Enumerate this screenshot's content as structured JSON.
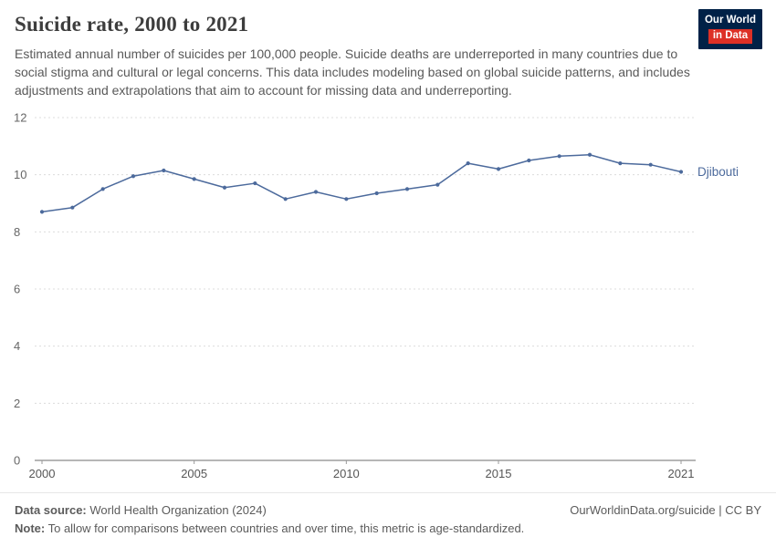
{
  "header": {
    "title": "Suicide rate, 2000 to 2021",
    "subtitle": "Estimated annual number of suicides per 100,000 people. Suicide deaths are underreported in many countries due to social stigma and cultural or legal concerns. This data includes modeling based on global suicide patterns, and includes adjustments and extrapolations that aim to account for missing data and underreporting.",
    "logo": {
      "line1": "Our World",
      "line2": "in Data",
      "bg_color": "#002147",
      "accent_color": "#dd3026"
    }
  },
  "chart_data": {
    "type": "line",
    "title": "Suicide rate, 2000 to 2021",
    "xlabel": "",
    "ylabel": "",
    "xlim": [
      2000,
      2021
    ],
    "ylim": [
      0,
      12
    ],
    "x_ticks": [
      2000,
      2005,
      2010,
      2015,
      2021
    ],
    "y_ticks": [
      0,
      2,
      4,
      6,
      8,
      10,
      12
    ],
    "grid": "horizontal-dashed",
    "legend_position": "end-of-line-label",
    "series": [
      {
        "name": "Djibouti",
        "color": "#4c6a9c",
        "x": [
          2000,
          2001,
          2002,
          2003,
          2004,
          2005,
          2006,
          2007,
          2008,
          2009,
          2010,
          2011,
          2012,
          2013,
          2014,
          2015,
          2016,
          2017,
          2018,
          2019,
          2020,
          2021
        ],
        "values": [
          8.7,
          8.85,
          9.5,
          9.95,
          10.15,
          9.85,
          9.55,
          9.7,
          9.15,
          9.4,
          9.15,
          9.35,
          9.5,
          9.65,
          10.4,
          10.2,
          10.5,
          10.65,
          10.7,
          10.4,
          10.35,
          10.1
        ]
      }
    ]
  },
  "footer": {
    "datasource_label": "Data source:",
    "datasource_value": " World Health Organization (2024)",
    "rights": "OurWorldinData.org/suicide | CC BY",
    "note_label": "Note:",
    "note_value": " To allow for comparisons between countries and over time, this metric is age-standardized."
  }
}
